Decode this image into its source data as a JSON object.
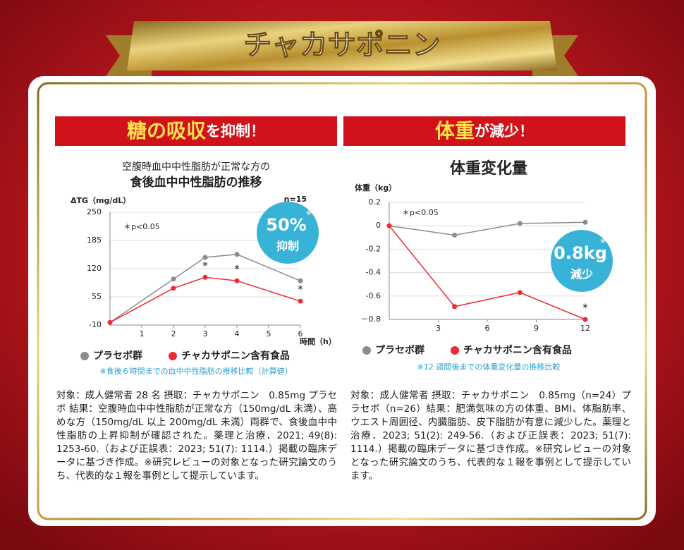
{
  "banner": "チャカサポニン",
  "panels": [
    {
      "heading_em": "糖の吸収",
      "heading_rest": "を抑制！",
      "body": "対象：成人健常者 28 名 摂取：チャカサポニン　0.85mg プラセボ 結果：空腹時血中中性脂肪が正常な方（150mg/dL 未満）、高めな方（150mg/dL 以上 200mg/dL 未満）両群で、食後血中中性脂肪の上昇抑制が確認された。薬理と治療．2021; 49(8): 1253-60.（および正誤表：2023; 51(7): 1114.）掲載の臨床データに基づき作成。※研究レビューの対象となった研究論文のうち、代表的な１報を事例として提示しています。"
    },
    {
      "heading_em": "体重",
      "heading_rest": "が減少！",
      "body": "対象：成人健常者 摂取：チャカサポニン　0.85mg（n=24）プラセボ（n=26）結果：肥満気味の方の体重、BMI、体脂肪率、ウエスト周囲径、内臓脂肪、皮下脂肪が有意に減少した。薬理と治療．2023; 51(2): 249-56.（および正誤表：2023; 51(7): 1114.）掲載の臨床データに基づき作成。※研究レビューの対象となった研究論文のうち、代表的な１報を事例として提示しています。"
    }
  ],
  "chart_data": [
    {
      "type": "line",
      "subtitle": "空腹時血中中性脂肪が正常な方の",
      "title": "食後血中中性脂肪の推移",
      "ylabel": "ΔTG（mg/dL）",
      "xlabel": "時間（h）",
      "n_label": "n=15",
      "significance": "＊p<0.05",
      "x": [
        0,
        2,
        3,
        4,
        6
      ],
      "xlim": [
        0,
        6
      ],
      "xticks": [
        1,
        2,
        3,
        4,
        5,
        6
      ],
      "ylim": [
        -10,
        250
      ],
      "yticks": [
        -10,
        55,
        120,
        185,
        250
      ],
      "grid": true,
      "series": [
        {
          "name": "プラセボ群",
          "color": "#8c8c8c",
          "values": [
            -4,
            96,
            146,
            153,
            92
          ]
        },
        {
          "name": "チャカサポニン含有食品",
          "color": "#ee2a35",
          "values": [
            -4,
            75,
            100,
            92,
            45
          ]
        }
      ],
      "annotations": [
        {
          "text": "*",
          "x": 3
        },
        {
          "text": "*",
          "x": 4
        },
        {
          "text": "*",
          "x": 6
        }
      ],
      "badge": {
        "value": "50%",
        "mark": "※",
        "text": "抑制"
      },
      "note": "※食後６時間までの血中中性脂肪の推移比較（計算値）"
    },
    {
      "type": "line",
      "title": "体重変化量",
      "ylabel": "体重（kg）",
      "significance": "＊p<0.05",
      "x": [
        0,
        4,
        8,
        12
      ],
      "xlim": [
        0,
        12
      ],
      "xticks": [
        3,
        6,
        9,
        12
      ],
      "ylim": [
        -0.8,
        0.2
      ],
      "yticks": [
        0.2,
        0,
        -0.2,
        -0.4,
        -0.6,
        {
          "value": -0.8,
          "label": "－0.8"
        }
      ],
      "grid": true,
      "series": [
        {
          "name": "プラセボ群",
          "color": "#8c8c8c",
          "values": [
            0,
            -0.08,
            0.02,
            0.03
          ]
        },
        {
          "name": "チャカサポニン含有食品",
          "color": "#ee2a35",
          "values": [
            0,
            -0.69,
            -0.57,
            -0.8
          ]
        }
      ],
      "annotations": [
        {
          "text": "*",
          "x": 12
        }
      ],
      "badge": {
        "value": "0.8kg",
        "mark": "※",
        "text": "減少"
      },
      "note": "※12 週間後までの体重変化量の推移比較"
    }
  ]
}
